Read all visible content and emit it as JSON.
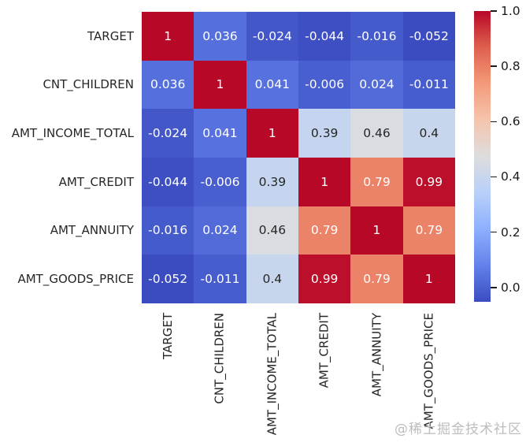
{
  "figure": {
    "background": "#ffffff"
  },
  "watermark": {
    "text": "@稀土掘金技术社区",
    "color": "#bdbdbd"
  },
  "chart_data": {
    "type": "heatmap",
    "title": "",
    "variables": [
      "TARGET",
      "CNT_CHILDREN",
      "AMT_INCOME_TOTAL",
      "AMT_CREDIT",
      "AMT_ANNUITY",
      "AMT_GOODS_PRICE"
    ],
    "y_tick_labels": [
      "TARGET",
      "CNT_CHILDREN",
      "AMT_INCOME_TOTAL",
      "AMT_CREDIT",
      "AMT_ANNUITY",
      "AMT_GOODS_PRICE"
    ],
    "x_tick_labels": [
      "TARGET",
      "CNT_CHILDREN",
      "AMT_INCOME_TOTAL",
      "AMT_CREDIT",
      "AMT_ANNUITY",
      "AMT_GOODS_PRICE"
    ],
    "matrix": [
      [
        1,
        0.036,
        -0.024,
        -0.044,
        -0.016,
        -0.052
      ],
      [
        0.036,
        1,
        0.041,
        -0.006,
        0.024,
        -0.011
      ],
      [
        -0.024,
        0.041,
        1,
        0.39,
        0.46,
        0.4
      ],
      [
        -0.044,
        -0.006,
        0.39,
        1,
        0.79,
        0.99
      ],
      [
        -0.016,
        0.024,
        0.46,
        0.79,
        1,
        0.79
      ],
      [
        -0.052,
        -0.011,
        0.4,
        0.99,
        0.79,
        1
      ]
    ],
    "annotations": [
      [
        "1",
        "0.036",
        "-0.024",
        "-0.044",
        "-0.016",
        "-0.052"
      ],
      [
        "0.036",
        "1",
        "0.041",
        "-0.006",
        "0.024",
        "-0.011"
      ],
      [
        "-0.024",
        "0.041",
        "1",
        "0.39",
        "0.46",
        "0.4"
      ],
      [
        "-0.044",
        "-0.006",
        "0.39",
        "1",
        "0.79",
        "0.99"
      ],
      [
        "-0.016",
        "0.024",
        "0.46",
        "0.79",
        "1",
        "0.79"
      ],
      [
        "-0.052",
        "-0.011",
        "0.4",
        "0.99",
        "0.79",
        "1"
      ]
    ],
    "colormap": "coolwarm",
    "vmin": -0.052,
    "vmax": 1.0,
    "colorbar": {
      "position": "right",
      "ticks": [
        {
          "label": "1.0",
          "value": 1.0
        },
        {
          "label": "0.8",
          "value": 0.8
        },
        {
          "label": "0.6",
          "value": 0.6
        },
        {
          "label": "0.4",
          "value": 0.4
        },
        {
          "label": "0.2",
          "value": 0.2
        },
        {
          "label": "0.0",
          "value": 0.0
        }
      ]
    },
    "colormap_stops": [
      {
        "t": 0.0,
        "color": "#3b4cc0"
      },
      {
        "t": 0.125,
        "color": "#6282ea"
      },
      {
        "t": 0.25,
        "color": "#8db0fe"
      },
      {
        "t": 0.375,
        "color": "#b8d0f9"
      },
      {
        "t": 0.5,
        "color": "#dddddd"
      },
      {
        "t": 0.625,
        "color": "#f5c4ad"
      },
      {
        "t": 0.75,
        "color": "#f49a7b"
      },
      {
        "t": 0.875,
        "color": "#de604d"
      },
      {
        "t": 1.0,
        "color": "#b80828"
      }
    ],
    "colors": {
      "annotation_light": "#ffffff",
      "annotation_dark": "#262626",
      "tick_label": "#262626",
      "colorbar_tick": "#1a1a1a"
    }
  }
}
